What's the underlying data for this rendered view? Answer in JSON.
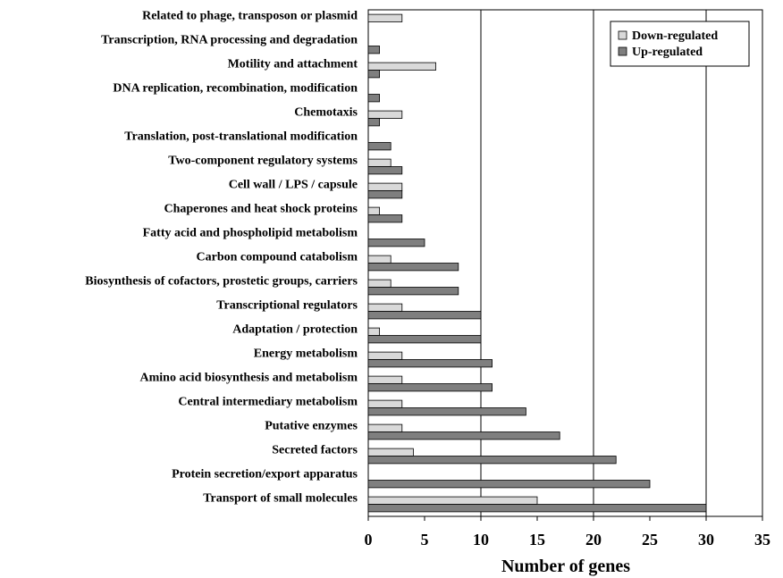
{
  "chart_data": {
    "type": "bar",
    "orientation": "horizontal",
    "xlabel": "Number of genes",
    "xlim": [
      0,
      35
    ],
    "xticks": [
      "0",
      "5",
      "10",
      "15",
      "20",
      "25",
      "30",
      "35"
    ],
    "gridlines_at": [
      10,
      20,
      30
    ],
    "legend_position": "top-right",
    "categories": [
      "Related to phage, transposon or plasmid",
      "Transcription, RNA processing and degradation",
      "Motility and attachment",
      "DNA replication, recombination, modification",
      "Chemotaxis",
      "Translation, post-translational modification",
      "Two-component regulatory systems",
      "Cell wall / LPS / capsule",
      "Chaperones and heat shock proteins",
      "Fatty acid and phospholipid metabolism",
      "Carbon compound catabolism",
      "Biosynthesis of cofactors, prostetic groups, carriers",
      "Transcriptional regulators",
      "Adaptation / protection",
      "Energy metabolism",
      "Amino acid biosynthesis and metabolism",
      "Central intermediary metabolism",
      "Putative enzymes",
      "Secreted factors",
      "Protein secretion/export apparatus",
      "Transport of small molecules"
    ],
    "series": [
      {
        "name": "Down-regulated",
        "color": "#d9d9d9",
        "values": [
          3,
          0,
          6,
          0,
          3,
          0,
          2,
          3,
          1,
          0,
          2,
          2,
          3,
          1,
          3,
          3,
          3,
          3,
          4,
          0,
          15
        ]
      },
      {
        "name": "Up-regulated",
        "color": "#7f7f7f",
        "values": [
          0,
          1,
          1,
          1,
          1,
          2,
          3,
          3,
          3,
          5,
          8,
          8,
          10,
          10,
          11,
          11,
          14,
          17,
          22,
          25,
          30
        ]
      }
    ]
  }
}
